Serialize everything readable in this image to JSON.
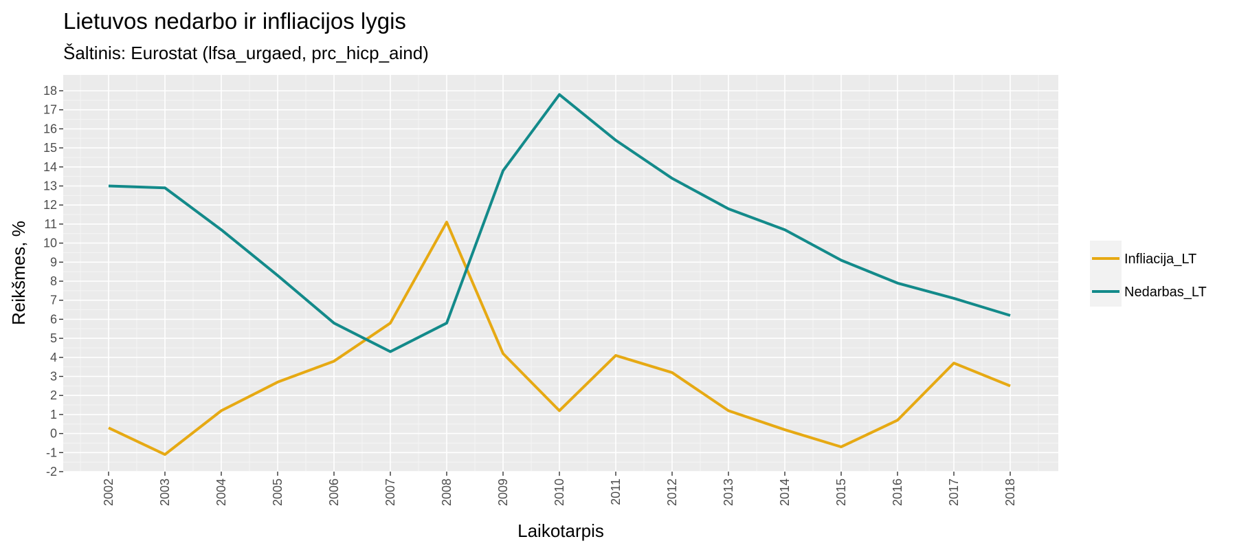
{
  "chart_data": {
    "type": "line",
    "title": "Lietuvos nedarbo ir infliacijos lygis",
    "subtitle": "Šaltinis: Eurostat (lfsa_urgaed, prc_hicp_aind)",
    "xlabel": "Laikotarpis",
    "ylabel": "Reikšmes, %",
    "x": [
      "2002",
      "2003",
      "2004",
      "2005",
      "2006",
      "2007",
      "2008",
      "2009",
      "2010",
      "2011",
      "2012",
      "2013",
      "2014",
      "2015",
      "2016",
      "2017",
      "2018"
    ],
    "ylim": [
      -2,
      18
    ],
    "yticks": [
      "-2",
      "-1",
      "0",
      "1",
      "2",
      "3",
      "4",
      "5",
      "6",
      "7",
      "8",
      "9",
      "10",
      "11",
      "12",
      "13",
      "14",
      "15",
      "16",
      "17",
      "18"
    ],
    "grid": true,
    "legend_position": "right",
    "series": [
      {
        "name": "Infliacija_LT",
        "color": "#E6A913",
        "values": [
          0.3,
          -1.1,
          1.2,
          2.7,
          3.8,
          5.8,
          11.1,
          4.2,
          1.2,
          4.1,
          3.2,
          1.2,
          0.2,
          -0.7,
          0.7,
          3.7,
          2.5
        ]
      },
      {
        "name": "Nedarbas_LT",
        "color": "#138A8A",
        "values": [
          13.0,
          12.9,
          10.7,
          8.3,
          5.8,
          4.3,
          5.8,
          13.8,
          17.8,
          15.4,
          13.4,
          11.8,
          10.7,
          9.1,
          7.9,
          7.1,
          6.2
        ]
      }
    ]
  }
}
